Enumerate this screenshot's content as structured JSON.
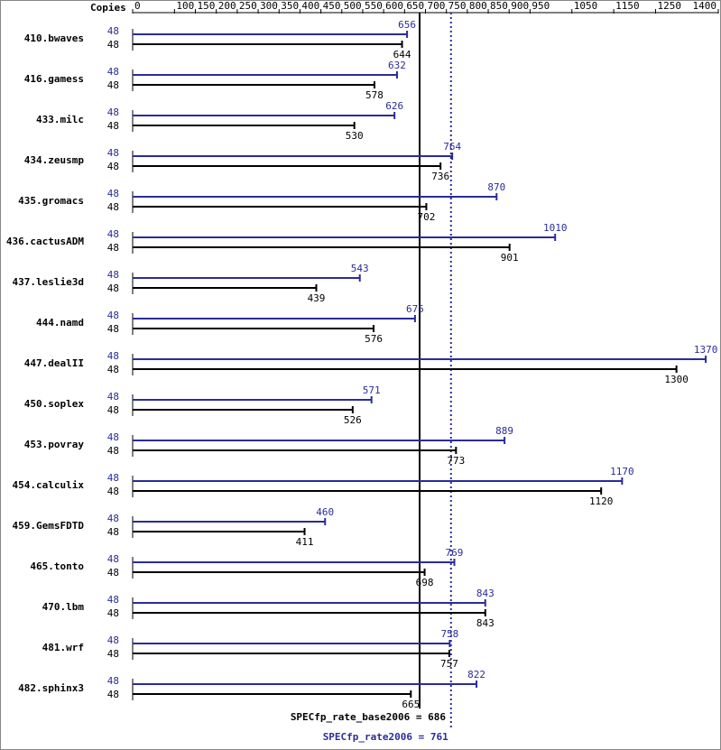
{
  "chart_data": {
    "type": "spec-bar",
    "copies_header": "Copies",
    "categories": [
      "410.bwaves",
      "416.gamess",
      "433.milc",
      "434.zeusmp",
      "435.gromacs",
      "436.cactusADM",
      "437.leslie3d",
      "444.namd",
      "447.dealII",
      "450.soplex",
      "453.povray",
      "454.calculix",
      "459.GemsFDTD",
      "465.tonto",
      "470.lbm",
      "481.wrf",
      "482.sphinx3"
    ],
    "series": [
      {
        "color": "#2b2b9b",
        "copies": [
          "48",
          "48",
          "48",
          "48",
          "48",
          "48",
          "48",
          "48",
          "48",
          "48",
          "48",
          "48",
          "48",
          "48",
          "48",
          "48",
          "48"
        ],
        "values": [
          656,
          632,
          626,
          764,
          870,
          1010,
          543,
          675,
          1370,
          571,
          889,
          1170,
          460,
          769,
          843,
          758,
          822
        ]
      },
      {
        "color": "#000000",
        "copies": [
          "48",
          "48",
          "48",
          "48",
          "48",
          "48",
          "48",
          "48",
          "48",
          "48",
          "48",
          "48",
          "48",
          "48",
          "48",
          "48",
          "48"
        ],
        "values": [
          644,
          578,
          530,
          736,
          702,
          901,
          439,
          576,
          1300,
          526,
          773,
          1120,
          411,
          698,
          843,
          757,
          665
        ]
      }
    ],
    "xlim": [
      0,
      1400
    ],
    "xticks": [
      0,
      100,
      150,
      200,
      250,
      300,
      350,
      400,
      450,
      500,
      550,
      600,
      650,
      700,
      750,
      800,
      850,
      900,
      950,
      1050,
      1150,
      1250,
      1400
    ],
    "references": [
      {
        "value": 686,
        "label": "SPECfp_rate_base2006 = 686",
        "color": "#000000",
        "style": "solid"
      },
      {
        "value": 761,
        "label": "SPECfp_rate2006 = 761",
        "color": "#2b2b9b",
        "style": "dotted"
      }
    ]
  }
}
